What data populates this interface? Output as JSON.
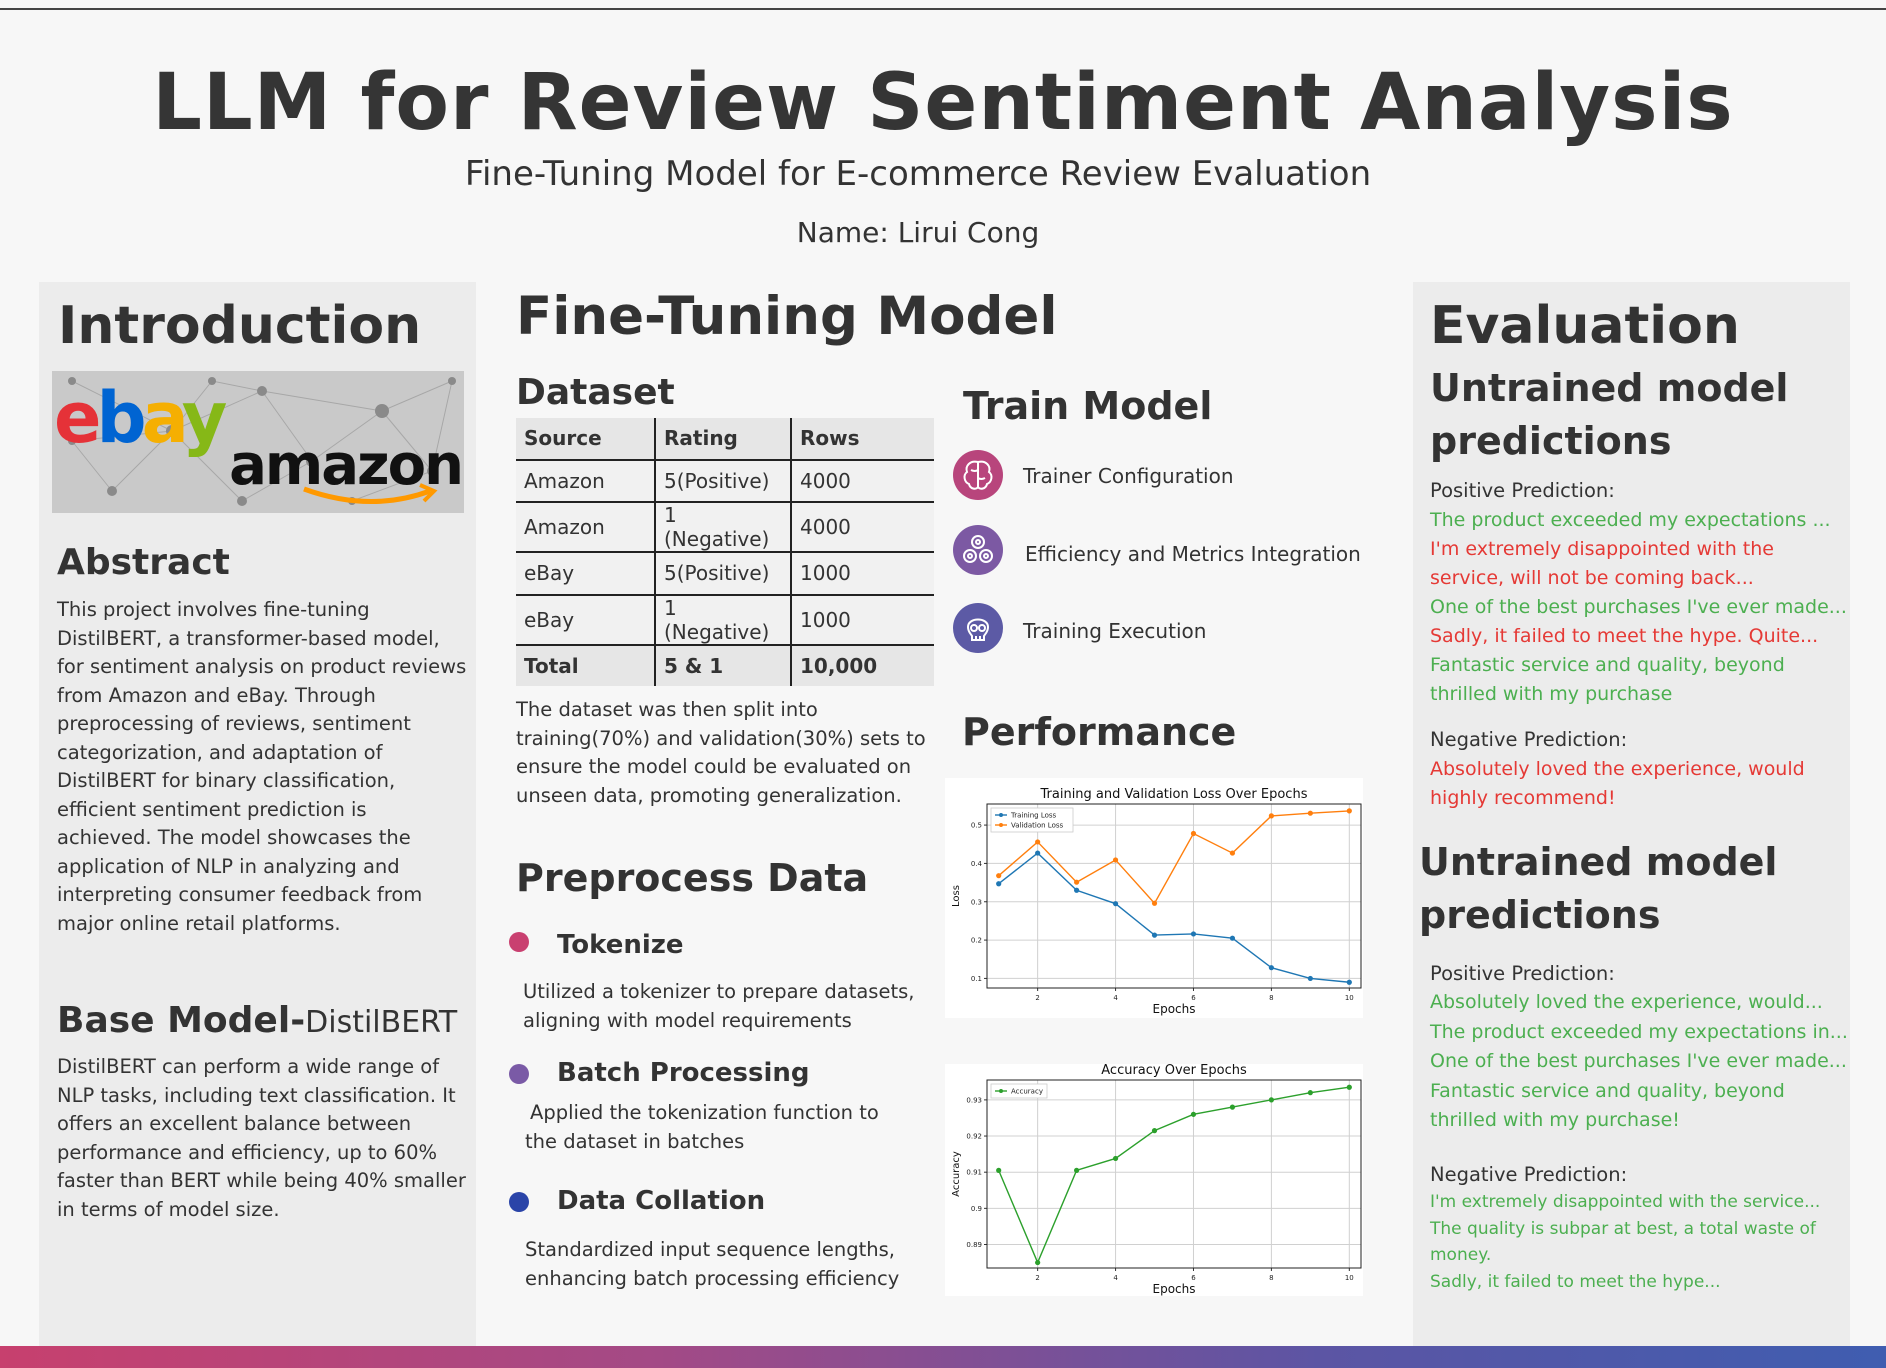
{
  "header": {
    "title": "LLM for Review Sentiment Analysis",
    "subtitle": "Fine-Tuning Model for E-commerce Review Evaluation",
    "author": "Name: Lirui Cong"
  },
  "introduction": {
    "heading": "Introduction",
    "logo_ebay": "ebay",
    "logo_amazon": "amazon",
    "abstract_heading": "Abstract",
    "abstract_lines": [
      "This project involves fine-tuning",
      "DistilBERT, a transformer-based model,",
      "for sentiment analysis on product reviews",
      "from Amazon and eBay. Through",
      "preprocessing of reviews, sentiment",
      "categorization, and adaptation of",
      "DistilBERT for binary classification,",
      "efficient sentiment prediction is",
      "achieved. The model showcases the",
      "application of NLP in analyzing and",
      "interpreting consumer feedback from",
      "major online retail platforms."
    ],
    "base_heading_main": "Base Model-",
    "base_heading_sub": "DistilBERT",
    "base_lines": [
      "DistilBERT can perform a wide range of",
      "NLP tasks, including text classification. It",
      "offers an excellent balance between",
      "performance and efficiency, up to 60%",
      "faster than BERT while being 40% smaller",
      "in terms of model size."
    ]
  },
  "fine_tuning": {
    "heading": "Fine-Tuning Model",
    "dataset_heading": "Dataset",
    "table": {
      "columns": [
        "Source",
        "Rating",
        "Rows"
      ],
      "rows": [
        [
          "Amazon",
          "5(Positive)",
          "4000"
        ],
        [
          "Amazon",
          "1 (Negative)",
          "4000"
        ],
        [
          "eBay",
          "5(Positive)",
          "1000"
        ],
        [
          "eBay",
          "1 (Negative)",
          "1000"
        ]
      ],
      "total": [
        "Total",
        "5 & 1",
        "10,000"
      ]
    },
    "split_lines": [
      "The dataset was then split into",
      "training(70%) and validation(30%) sets to",
      "ensure the model could be evaluated on",
      "unseen data, promoting generalization."
    ],
    "preprocess_heading": "Preprocess Data",
    "steps": [
      {
        "title": "Tokenize",
        "color": "#c94070",
        "lines": [
          "Utilized a tokenizer to prepare datasets,",
          "aligning with model requirements"
        ]
      },
      {
        "title": "Batch Processing",
        "color": "#7a5aa6",
        "lines": [
          "Applied the tokenization function to",
          "the dataset in batches"
        ]
      },
      {
        "title": "Data Collation",
        "color": "#2a44a8",
        "lines": [
          "Standardized input sequence lengths,",
          "enhancing batch processing efficiency"
        ]
      }
    ],
    "train_heading": "Train Model",
    "train_items": [
      {
        "label": "Trainer Configuration",
        "icon": "brain-icon",
        "color": "#b8457c"
      },
      {
        "label": "Efficiency and Metrics Integration",
        "icon": "gears-icon",
        "color": "#7c59a3"
      },
      {
        "label": "Training Execution",
        "icon": "skull-icon",
        "color": "#5c5aa5"
      }
    ],
    "performance_heading": "Performance"
  },
  "chart_data": [
    {
      "type": "line",
      "title": "Training and Validation Loss Over Epochs",
      "xlabel": "Epochs",
      "ylabel": "Loss",
      "x": [
        1,
        2,
        3,
        4,
        5,
        6,
        7,
        8,
        9,
        10
      ],
      "xticks": [
        2,
        4,
        6,
        8,
        10
      ],
      "yticks": [
        0.1,
        0.2,
        0.3,
        0.4,
        0.5
      ],
      "xlim": [
        0.7,
        10.3
      ],
      "ylim": [
        0.075,
        0.555
      ],
      "grid": true,
      "legend": "top-left",
      "series": [
        {
          "name": "Training Loss",
          "color": "#1f77b4",
          "values": [
            0.347,
            0.427,
            0.33,
            0.295,
            0.213,
            0.216,
            0.205,
            0.128,
            0.1,
            0.09
          ]
        },
        {
          "name": "Validation Loss",
          "color": "#ff7f0e",
          "values": [
            0.368,
            0.456,
            0.351,
            0.409,
            0.296,
            0.478,
            0.427,
            0.524,
            0.531,
            0.537
          ]
        }
      ]
    },
    {
      "type": "line",
      "title": "Accuracy Over Epochs",
      "xlabel": "Epochs",
      "ylabel": "Accuracy",
      "x": [
        1,
        2,
        3,
        4,
        5,
        6,
        7,
        8,
        9,
        10
      ],
      "xticks": [
        2,
        4,
        6,
        8,
        10
      ],
      "yticks": [
        0.89,
        0.9,
        0.91,
        0.92,
        0.93
      ],
      "xlim": [
        0.7,
        10.3
      ],
      "ylim": [
        0.8835,
        0.9355
      ],
      "grid": true,
      "legend": "top-left",
      "series": [
        {
          "name": "Accuracy",
          "color": "#2ca02c",
          "values": [
            0.9105,
            0.885,
            0.9105,
            0.9138,
            0.9215,
            0.926,
            0.928,
            0.93,
            0.932,
            0.9335
          ]
        }
      ]
    }
  ],
  "evaluation": {
    "heading": "Evaluation",
    "untrained_heading_1": "Untrained model",
    "untrained_heading_2": "predictions",
    "positive_label": "Positive Prediction:",
    "negative_label": "Negative Prediction:",
    "block1_positive": [
      {
        "text": "The product exceeded my expectations ...",
        "tone": "pos"
      },
      {
        "text": "I'm extremely disappointed with the",
        "tone": "neg"
      },
      {
        "text": "service, will not be coming back...",
        "tone": "neg"
      },
      {
        "text": "One of the best purchases I've ever made...",
        "tone": "pos"
      },
      {
        "text": "Sadly, it failed to meet the hype. Quite...",
        "tone": "neg"
      },
      {
        "text": "Fantastic service and quality, beyond",
        "tone": "pos"
      },
      {
        "text": "thrilled with my purchase",
        "tone": "pos"
      }
    ],
    "block1_negative": [
      {
        "text": "Absolutely loved the experience, would",
        "tone": "neg"
      },
      {
        "text": "highly recommend!",
        "tone": "neg"
      }
    ],
    "block2_positive": [
      {
        "text": "Absolutely loved the experience, would...",
        "tone": "pos"
      },
      {
        "text": "The product exceeded my expectations in...",
        "tone": "pos"
      },
      {
        "text": "One of the best purchases I've ever made...",
        "tone": "pos"
      },
      {
        "text": "Fantastic service and quality, beyond",
        "tone": "pos"
      },
      {
        "text": "thrilled with my purchase!",
        "tone": "pos"
      }
    ],
    "block2_negative": [
      {
        "text": "I'm extremely disappointed with the service...",
        "tone": "pos"
      },
      {
        "text": "The quality is subpar at best, a total waste of",
        "tone": "pos"
      },
      {
        "text": "money.",
        "tone": "pos"
      },
      {
        "text": "Sadly, it failed to meet the hype...",
        "tone": "pos"
      }
    ]
  }
}
